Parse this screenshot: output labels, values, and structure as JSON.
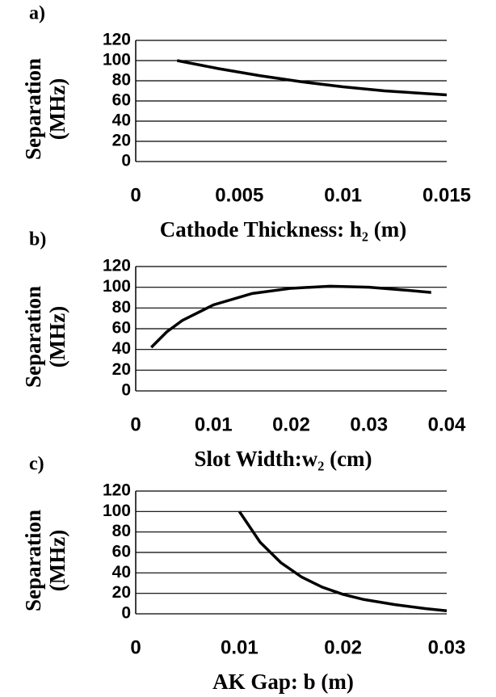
{
  "chart_data": [
    {
      "type": "line",
      "label": "a)",
      "ylabel": [
        "Separation",
        "(MHz)"
      ],
      "xlabel": "Cathode Thickness: h₂ (m)",
      "x": [
        0.002,
        0.004,
        0.006,
        0.008,
        0.01,
        0.012,
        0.015
      ],
      "values": [
        100,
        92,
        85,
        79,
        74,
        70,
        66
      ],
      "color": "#000000",
      "xlim": [
        0,
        0.015
      ],
      "xticks": [
        0,
        0.005,
        0.01,
        0.015
      ],
      "ylim": [
        0,
        120
      ],
      "yticks": [
        0,
        20,
        40,
        60,
        80,
        100,
        120
      ],
      "grid": true
    },
    {
      "type": "line",
      "label": "b)",
      "ylabel": [
        "Separation",
        "(MHz)"
      ],
      "xlabel": "Slot Width:w₂ (cm)",
      "x": [
        0.002,
        0.004,
        0.006,
        0.01,
        0.015,
        0.02,
        0.025,
        0.03,
        0.035,
        0.038
      ],
      "values": [
        42,
        57,
        68,
        83,
        94,
        99,
        101,
        100,
        97,
        95
      ],
      "color": "#000000",
      "xlim": [
        0,
        0.04
      ],
      "xticks": [
        0,
        0.01,
        0.02,
        0.03,
        0.04
      ],
      "ylim": [
        0,
        120
      ],
      "yticks": [
        0,
        20,
        40,
        60,
        80,
        100,
        120
      ],
      "grid": true
    },
    {
      "type": "line",
      "label": "c)",
      "ylabel": [
        "Separation",
        "(MHz)"
      ],
      "xlabel": "AK Gap: b (m)",
      "x": [
        0.01,
        0.012,
        0.014,
        0.016,
        0.018,
        0.02,
        0.022,
        0.025,
        0.028,
        0.03
      ],
      "values": [
        100,
        70,
        50,
        36,
        26,
        19,
        14,
        9,
        5,
        3
      ],
      "color": "#000000",
      "xlim": [
        0,
        0.03
      ],
      "xticks": [
        0,
        0.01,
        0.02,
        0.03
      ],
      "ylim": [
        0,
        120
      ],
      "yticks": [
        0,
        20,
        40,
        60,
        80,
        100,
        120
      ],
      "grid": true
    }
  ]
}
